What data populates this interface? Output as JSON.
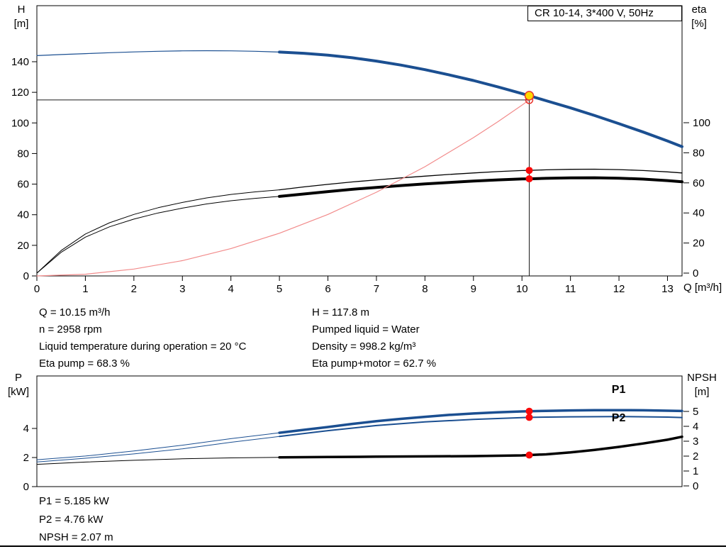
{
  "title_box": "CR 10-14, 3*400 V, 50Hz",
  "info_top": {
    "left": [
      "Q = 10.15 m³/h",
      "n = 2958 rpm",
      "Liquid temperature during operation = 20 °C",
      "Eta pump = 68.3 %"
    ],
    "right": [
      "H = 117.8 m",
      "Pumped liquid = Water",
      "Density = 998.2 kg/m³",
      "Eta pump+motor = 62.7 %"
    ]
  },
  "info_bottom": [
    "P1 = 5.185 kW",
    "P2 = 4.76 kW",
    "NPSH = 2.07 m"
  ],
  "colors": {
    "curve_blue": "#1b4f91",
    "curve_black": "#000000",
    "system_red": "#f28b8b",
    "dot_red": "#fa0a0a",
    "duty_yellow": "#ffd800"
  },
  "chart_data": [
    {
      "id": "top",
      "type": "line",
      "x_label": "Q [m³/h]",
      "x_range": [
        0,
        13.3
      ],
      "x_ticks": [
        0,
        1,
        2,
        3,
        4,
        5,
        6,
        7,
        8,
        9,
        10,
        11,
        12,
        13
      ],
      "y_left": {
        "axis": "H",
        "label": [
          "H",
          "[m]"
        ],
        "ticks": [
          0,
          20,
          40,
          60,
          80,
          100,
          120,
          140
        ],
        "range": [
          0,
          176
        ]
      },
      "y_right": {
        "axis": "eta",
        "label": [
          "eta",
          "[%]"
        ],
        "ticks": [
          0,
          20,
          40,
          60,
          80,
          100
        ],
        "range": [
          0,
          178
        ]
      },
      "series": [
        {
          "name": "hq-curve-low-flow",
          "axis": "H",
          "color": "#1b4f91",
          "width": 1.2,
          "points": [
            [
              0,
              144
            ],
            [
              0.5,
              144.7
            ],
            [
              1,
              145.3
            ],
            [
              1.5,
              145.9
            ],
            [
              2,
              146.4
            ],
            [
              2.5,
              146.8
            ],
            [
              3,
              147.1
            ],
            [
              3.5,
              147.2
            ],
            [
              4,
              147.1
            ],
            [
              4.5,
              146.8
            ],
            [
              5,
              146.3
            ]
          ]
        },
        {
          "name": "hq-curve",
          "axis": "H",
          "color": "#1b4f91",
          "width": 4,
          "points": [
            [
              5,
              146.3
            ],
            [
              5.5,
              145.5
            ],
            [
              6,
              144.3
            ],
            [
              6.5,
              142.6
            ],
            [
              7,
              140.4
            ],
            [
              7.5,
              137.8
            ],
            [
              8,
              134.8
            ],
            [
              8.5,
              131.4
            ],
            [
              9,
              127.7
            ],
            [
              9.5,
              123.6
            ],
            [
              10,
              119.2
            ],
            [
              10.15,
              117.8
            ],
            [
              10.5,
              114.5
            ],
            [
              11,
              109.8
            ],
            [
              11.5,
              104.8
            ],
            [
              12,
              99.5
            ],
            [
              12.5,
              94
            ],
            [
              13,
              88.2
            ],
            [
              13.3,
              84.5
            ]
          ]
        },
        {
          "name": "eta-pump-curve-low-flow",
          "axis": "eta",
          "color": "#000000",
          "width": 1,
          "points": [
            [
              0,
              0
            ],
            [
              0.5,
              15
            ],
            [
              1,
              26
            ],
            [
              1.5,
              33.5
            ],
            [
              2,
              39
            ],
            [
              2.5,
              43.5
            ],
            [
              3,
              47
            ],
            [
              3.5,
              50
            ],
            [
              4,
              52.3
            ],
            [
              4.5,
              54
            ],
            [
              5,
              55.4
            ]
          ]
        },
        {
          "name": "eta-pump-curve",
          "axis": "eta",
          "color": "#000000",
          "width": 1.3,
          "points": [
            [
              5,
              55.4
            ],
            [
              5.5,
              57.3
            ],
            [
              6,
              59
            ],
            [
              6.5,
              60.6
            ],
            [
              7,
              62
            ],
            [
              7.5,
              63.3
            ],
            [
              8,
              64.5
            ],
            [
              8.5,
              65.6
            ],
            [
              9,
              66.6
            ],
            [
              9.5,
              67.5
            ],
            [
              10,
              68.2
            ],
            [
              10.15,
              68.3
            ],
            [
              10.5,
              68.7
            ],
            [
              11,
              69
            ],
            [
              11.5,
              69.1
            ],
            [
              12,
              68.8
            ],
            [
              12.5,
              68.2
            ],
            [
              13,
              67.3
            ],
            [
              13.3,
              66.6
            ]
          ]
        },
        {
          "name": "eta-pump-motor-curve-low-flow",
          "axis": "eta",
          "color": "#000000",
          "width": 1,
          "points": [
            [
              0,
              0
            ],
            [
              0.5,
              13.8
            ],
            [
              1,
              23.9
            ],
            [
              1.5,
              30.8
            ],
            [
              2,
              35.9
            ],
            [
              2.5,
              40
            ],
            [
              3,
              43.2
            ],
            [
              3.5,
              46
            ],
            [
              4,
              48.1
            ],
            [
              4.5,
              49.7
            ],
            [
              5,
              51
            ]
          ]
        },
        {
          "name": "eta-pump-motor-curve",
          "axis": "eta",
          "color": "#000000",
          "width": 4,
          "points": [
            [
              5,
              51
            ],
            [
              5.5,
              52.6
            ],
            [
              6,
              54.2
            ],
            [
              6.5,
              55.7
            ],
            [
              7,
              57
            ],
            [
              7.5,
              58.2
            ],
            [
              8,
              59.3
            ],
            [
              8.5,
              60.3
            ],
            [
              9,
              61.2
            ],
            [
              9.5,
              62
            ],
            [
              10,
              62.6
            ],
            [
              10.15,
              62.7
            ],
            [
              10.5,
              63
            ],
            [
              11,
              63.3
            ],
            [
              11.5,
              63.4
            ],
            [
              12,
              63.1
            ],
            [
              12.5,
              62.5
            ],
            [
              13,
              61.5
            ],
            [
              13.3,
              60.7
            ]
          ]
        },
        {
          "name": "system-curve",
          "axis": "H",
          "color": "#f28b8b",
          "width": 1.2,
          "points": [
            [
              0,
              0
            ],
            [
              1,
              1.1
            ],
            [
              2,
              4.5
            ],
            [
              3,
              10
            ],
            [
              4,
              17.9
            ],
            [
              5,
              27.9
            ],
            [
              6,
              40.2
            ],
            [
              7,
              54.7
            ],
            [
              8,
              71.4
            ],
            [
              9,
              90.4
            ],
            [
              9.5,
              100.7
            ],
            [
              10,
              111.6
            ],
            [
              10.15,
              115
            ]
          ]
        }
      ],
      "lines": [
        {
          "name": "duty-vline",
          "axis": "H",
          "q1": 10.15,
          "v1": 0,
          "q2": 10.15,
          "v2": 117.8
        },
        {
          "name": "duty-hline",
          "axis": "H",
          "q1": 0,
          "v1": 115,
          "q2": 10.15,
          "v2": 115
        }
      ],
      "markers": [
        {
          "name": "requested-duty-point",
          "q": 10.15,
          "axis": "H",
          "v": 115,
          "r": 5,
          "fill": "none",
          "stroke": "#e8342c"
        },
        {
          "name": "duty-point",
          "q": 10.15,
          "axis": "H",
          "v": 117.8,
          "r": 6,
          "fill": "#ffd800",
          "stroke": "#e8342c"
        },
        {
          "name": "eta-pump-point",
          "q": 10.15,
          "axis": "eta",
          "v": 68.3,
          "r": 5,
          "fill": "#fa0a0a"
        },
        {
          "name": "eta-pump-motor-point",
          "q": 10.15,
          "axis": "eta",
          "v": 62.7,
          "r": 5,
          "fill": "#fa0a0a"
        }
      ],
      "labels": []
    },
    {
      "id": "bottom",
      "type": "line",
      "x_label": "",
      "x_range": [
        0,
        13.3
      ],
      "x_ticks": [],
      "y_left": {
        "axis": "P",
        "label": [
          "P",
          "[kW]"
        ],
        "ticks": [
          0,
          2,
          4
        ],
        "range": [
          0,
          7.6
        ]
      },
      "y_right": {
        "axis": "NPSH",
        "label": [
          "NPSH",
          "[m]"
        ],
        "ticks": [
          0,
          1,
          2,
          3,
          4,
          5
        ],
        "range": [
          0,
          7.4
        ]
      },
      "series": [
        {
          "name": "p1-curve-low-flow",
          "axis": "P",
          "color": "#1b4f91",
          "width": 1,
          "points": [
            [
              0,
              1.85
            ],
            [
              1,
              2.1
            ],
            [
              2,
              2.45
            ],
            [
              3,
              2.85
            ],
            [
              4,
              3.3
            ],
            [
              5,
              3.7
            ]
          ]
        },
        {
          "name": "p1-curve",
          "axis": "P",
          "color": "#1b4f91",
          "width": 3.5,
          "points": [
            [
              5,
              3.7
            ],
            [
              5.5,
              3.9
            ],
            [
              6,
              4.1
            ],
            [
              6.5,
              4.31
            ],
            [
              7,
              4.5
            ],
            [
              7.5,
              4.66
            ],
            [
              8,
              4.8
            ],
            [
              8.5,
              4.93
            ],
            [
              9,
              5.03
            ],
            [
              9.5,
              5.11
            ],
            [
              10,
              5.17
            ],
            [
              10.15,
              5.185
            ],
            [
              10.5,
              5.21
            ],
            [
              11,
              5.24
            ],
            [
              11.5,
              5.26
            ],
            [
              12,
              5.26
            ],
            [
              12.5,
              5.25
            ],
            [
              13,
              5.22
            ],
            [
              13.3,
              5.2
            ]
          ]
        },
        {
          "name": "p2-curve-low-flow",
          "axis": "P",
          "color": "#1b4f91",
          "width": 1,
          "points": [
            [
              0,
              1.7
            ],
            [
              1,
              1.95
            ],
            [
              2,
              2.25
            ],
            [
              3,
              2.6
            ],
            [
              4,
              3.05
            ],
            [
              5,
              3.45
            ]
          ]
        },
        {
          "name": "p2-curve",
          "axis": "P",
          "color": "#1b4f91",
          "width": 2,
          "points": [
            [
              5,
              3.45
            ],
            [
              6,
              3.85
            ],
            [
              7,
              4.2
            ],
            [
              8,
              4.45
            ],
            [
              9,
              4.62
            ],
            [
              10,
              4.74
            ],
            [
              10.15,
              4.76
            ],
            [
              11,
              4.8
            ],
            [
              12,
              4.82
            ],
            [
              13,
              4.78
            ],
            [
              13.3,
              4.75
            ]
          ]
        },
        {
          "name": "npsh-curve-low-flow",
          "axis": "NPSH",
          "color": "#000000",
          "width": 1,
          "points": [
            [
              0,
              1.45
            ],
            [
              1,
              1.6
            ],
            [
              2,
              1.72
            ],
            [
              3,
              1.82
            ],
            [
              4,
              1.88
            ],
            [
              5,
              1.92
            ]
          ]
        },
        {
          "name": "npsh-curve",
          "axis": "NPSH",
          "color": "#000000",
          "width": 3.5,
          "points": [
            [
              5,
              1.92
            ],
            [
              6,
              1.94
            ],
            [
              7,
              1.96
            ],
            [
              8,
              1.98
            ],
            [
              9,
              2
            ],
            [
              10,
              2.05
            ],
            [
              10.15,
              2.07
            ],
            [
              10.5,
              2.12
            ],
            [
              11,
              2.25
            ],
            [
              11.5,
              2.42
            ],
            [
              12,
              2.62
            ],
            [
              12.5,
              2.85
            ],
            [
              13,
              3.1
            ],
            [
              13.3,
              3.3
            ]
          ]
        }
      ],
      "lines": [],
      "markers": [
        {
          "name": "p1-point",
          "q": 10.15,
          "axis": "P",
          "v": 5.185,
          "r": 5,
          "fill": "#fa0a0a"
        },
        {
          "name": "p2-point",
          "q": 10.15,
          "axis": "P",
          "v": 4.76,
          "r": 5,
          "fill": "#fa0a0a"
        },
        {
          "name": "npsh-point",
          "q": 10.15,
          "axis": "NPSH",
          "v": 2.07,
          "r": 5,
          "fill": "#fa0a0a"
        }
      ],
      "labels": [
        {
          "text": "P1",
          "q": 11.85,
          "axis": "P",
          "v": 6.45,
          "color": "#1b4f91"
        },
        {
          "text": "P2",
          "q": 11.85,
          "axis": "P",
          "v": 4.5,
          "color": "#1b4f91"
        }
      ]
    }
  ]
}
